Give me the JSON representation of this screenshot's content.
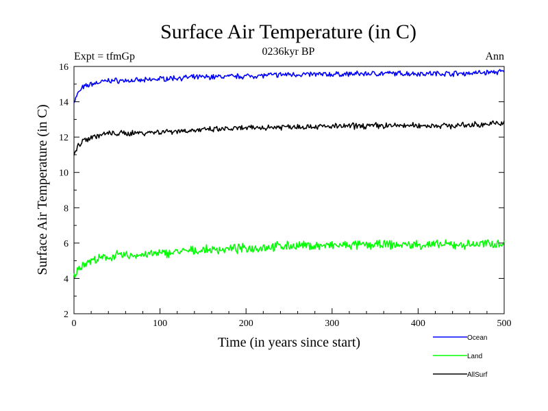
{
  "chart_data": {
    "type": "line",
    "title": "Surface Air Temperature (in C)",
    "subtitle": "0236kyr BP",
    "left_label": "Expt = tfmGp",
    "right_label": "Ann",
    "xlabel": "Time (in years since start)",
    "ylabel": "Surface Air Temperature (in C)",
    "xlim": [
      0,
      500
    ],
    "ylim": [
      2,
      16
    ],
    "x_ticks": [
      "0",
      "100",
      "200",
      "300",
      "400",
      "500"
    ],
    "y_ticks": [
      "2",
      "4",
      "6",
      "8",
      "10",
      "12",
      "14",
      "16"
    ],
    "grid": false,
    "legend_position": "bottom-right, below plot",
    "series": [
      {
        "name": "Ocean",
        "color": "#0000ff",
        "x": [
          0,
          5,
          10,
          15,
          20,
          30,
          40,
          50,
          60,
          70,
          80,
          100,
          120,
          150,
          200,
          250,
          300,
          350,
          400,
          450,
          500
        ],
        "y": [
          14.0,
          14.5,
          14.8,
          14.9,
          15.0,
          15.1,
          15.2,
          15.2,
          15.2,
          15.2,
          15.2,
          15.3,
          15.35,
          15.4,
          15.45,
          15.55,
          15.55,
          15.6,
          15.6,
          15.6,
          15.7
        ]
      },
      {
        "name": "Land",
        "color": "#00ff00",
        "x": [
          0,
          5,
          10,
          15,
          20,
          30,
          40,
          50,
          60,
          70,
          80,
          100,
          120,
          150,
          200,
          250,
          300,
          350,
          400,
          450,
          500
        ],
        "y": [
          4.1,
          4.5,
          4.8,
          4.9,
          5.0,
          5.1,
          5.2,
          5.3,
          5.3,
          5.3,
          5.35,
          5.4,
          5.5,
          5.6,
          5.7,
          5.85,
          5.85,
          5.9,
          5.9,
          5.9,
          6.0
        ]
      },
      {
        "name": "AllSurf",
        "color": "#000000",
        "x": [
          0,
          5,
          10,
          15,
          20,
          30,
          40,
          50,
          60,
          70,
          80,
          100,
          120,
          150,
          200,
          250,
          300,
          350,
          400,
          450,
          500
        ],
        "y": [
          11.0,
          11.5,
          11.8,
          11.9,
          12.0,
          12.1,
          12.2,
          12.2,
          12.2,
          12.25,
          12.25,
          12.3,
          12.35,
          12.4,
          12.5,
          12.6,
          12.6,
          12.65,
          12.65,
          12.65,
          12.8
        ]
      }
    ]
  }
}
